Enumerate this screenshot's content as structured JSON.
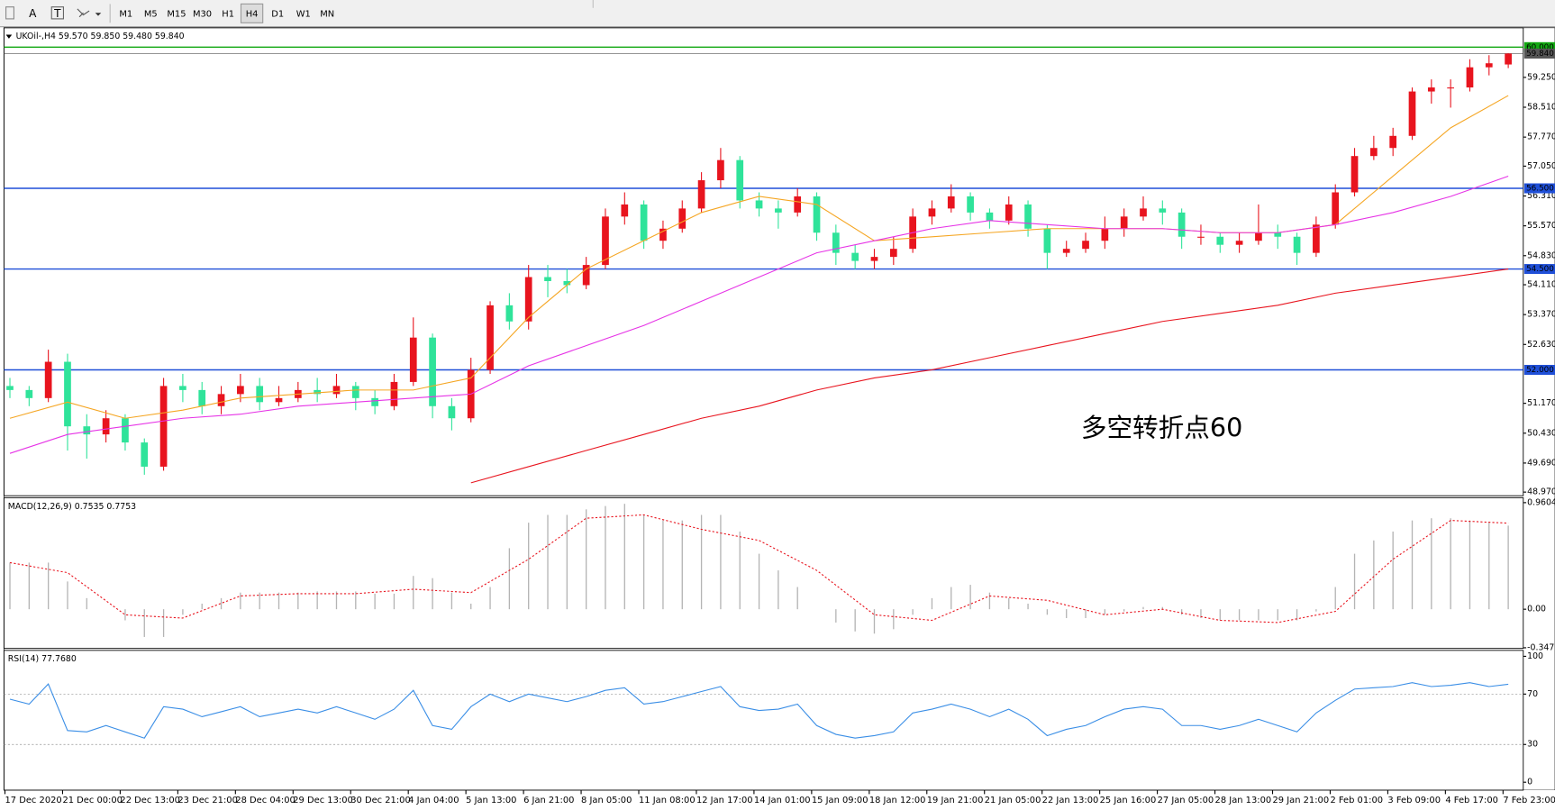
{
  "toolbar": {
    "tools": [
      "A",
      "T"
    ],
    "periods": [
      "M1",
      "M5",
      "M15",
      "M30",
      "H1",
      "H4",
      "D1",
      "W1",
      "MN"
    ]
  },
  "x_labels": [
    "17 Dec 2020",
    "21 Dec 00:00",
    "22 Dec 13:00",
    "23 Dec 21:00",
    "28 Dec 04:00",
    "29 Dec 13:00",
    "30 Dec 21:00",
    "4 Jan 04:00",
    "5 Jan 13:00",
    "6 Jan 21:00",
    "8 Jan 05:00",
    "11 Jan 08:00",
    "12 Jan 17:00",
    "14 Jan 01:00",
    "15 Jan 09:00",
    "18 Jan 12:00",
    "19 Jan 21:00",
    "21 Jan 05:00",
    "22 Jan 13:00",
    "25 Jan 16:00",
    "27 Jan 05:00",
    "28 Jan 13:00",
    "29 Jan 21:00",
    "2 Feb 01:00",
    "3 Feb 09:00",
    "4 Feb 17:00",
    "7 Feb 23:00"
  ],
  "chart_data": [
    {
      "type": "candlestick",
      "title": "UKOil-,H4 59.570 59.850 59.480 59.840",
      "up_color": "#e8141e",
      "down_color": "#2fe39a",
      "candles": [
        [
          51.6,
          51.8,
          51.3,
          51.5
        ],
        [
          51.5,
          51.6,
          51.1,
          51.3
        ],
        [
          51.3,
          52.5,
          51.2,
          52.2
        ],
        [
          52.2,
          52.4,
          50.0,
          50.6
        ],
        [
          50.6,
          50.9,
          49.8,
          50.4
        ],
        [
          50.4,
          51.0,
          50.2,
          50.8
        ],
        [
          50.8,
          50.9,
          50.0,
          50.2
        ],
        [
          50.2,
          50.3,
          49.4,
          49.6
        ],
        [
          49.6,
          51.8,
          49.5,
          51.6
        ],
        [
          51.6,
          51.9,
          51.2,
          51.5
        ],
        [
          51.5,
          51.7,
          50.9,
          51.1
        ],
        [
          51.1,
          51.6,
          50.9,
          51.4
        ],
        [
          51.4,
          51.9,
          51.2,
          51.6
        ],
        [
          51.6,
          51.8,
          51.0,
          51.2
        ],
        [
          51.2,
          51.6,
          51.1,
          51.3
        ],
        [
          51.3,
          51.7,
          51.2,
          51.5
        ],
        [
          51.5,
          51.8,
          51.2,
          51.4
        ],
        [
          51.4,
          51.9,
          51.3,
          51.6
        ],
        [
          51.6,
          51.7,
          51.0,
          51.3
        ],
        [
          51.3,
          51.5,
          50.9,
          51.1
        ],
        [
          51.1,
          51.9,
          51.0,
          51.7
        ],
        [
          51.7,
          53.3,
          51.6,
          52.8
        ],
        [
          52.8,
          52.9,
          50.8,
          51.1
        ],
        [
          51.1,
          51.3,
          50.5,
          50.8
        ],
        [
          50.8,
          52.3,
          50.7,
          52.0
        ],
        [
          52.0,
          53.7,
          51.9,
          53.6
        ],
        [
          53.6,
          53.9,
          53.0,
          53.2
        ],
        [
          53.2,
          54.6,
          53.0,
          54.3
        ],
        [
          54.3,
          54.6,
          53.8,
          54.2
        ],
        [
          54.2,
          54.5,
          53.9,
          54.1
        ],
        [
          54.1,
          54.8,
          54.0,
          54.6
        ],
        [
          54.6,
          56.0,
          54.5,
          55.8
        ],
        [
          55.8,
          56.4,
          55.6,
          56.1
        ],
        [
          56.1,
          56.2,
          55.0,
          55.2
        ],
        [
          55.2,
          55.7,
          55.0,
          55.5
        ],
        [
          55.5,
          56.2,
          55.4,
          56.0
        ],
        [
          56.0,
          56.9,
          55.9,
          56.7
        ],
        [
          56.7,
          57.5,
          56.5,
          57.2
        ],
        [
          57.2,
          57.3,
          56.0,
          56.2
        ],
        [
          56.2,
          56.4,
          55.8,
          56.0
        ],
        [
          56.0,
          56.2,
          55.5,
          55.9
        ],
        [
          55.9,
          56.5,
          55.8,
          56.3
        ],
        [
          56.3,
          56.4,
          55.2,
          55.4
        ],
        [
          55.4,
          55.6,
          54.6,
          54.9
        ],
        [
          54.9,
          55.1,
          54.5,
          54.7
        ],
        [
          54.7,
          55.0,
          54.5,
          54.8
        ],
        [
          54.8,
          55.3,
          54.6,
          55.0
        ],
        [
          55.0,
          56.0,
          54.9,
          55.8
        ],
        [
          55.8,
          56.2,
          55.6,
          56.0
        ],
        [
          56.0,
          56.6,
          55.9,
          56.3
        ],
        [
          56.3,
          56.4,
          55.7,
          55.9
        ],
        [
          55.9,
          56.0,
          55.5,
          55.7
        ],
        [
          55.7,
          56.3,
          55.6,
          56.1
        ],
        [
          56.1,
          56.2,
          55.3,
          55.5
        ],
        [
          55.5,
          55.6,
          54.5,
          54.9
        ],
        [
          54.9,
          55.2,
          54.8,
          55.0
        ],
        [
          55.0,
          55.4,
          54.9,
          55.2
        ],
        [
          55.2,
          55.8,
          55.0,
          55.5
        ],
        [
          55.5,
          56.0,
          55.3,
          55.8
        ],
        [
          55.8,
          56.3,
          55.7,
          56.0
        ],
        [
          56.0,
          56.2,
          55.6,
          55.9
        ],
        [
          55.9,
          56.0,
          55.0,
          55.3
        ],
        [
          55.3,
          55.6,
          55.1,
          55.3
        ],
        [
          55.3,
          55.4,
          54.9,
          55.1
        ],
        [
          55.1,
          55.4,
          54.9,
          55.2
        ],
        [
          55.2,
          56.1,
          55.1,
          55.4
        ],
        [
          55.4,
          55.6,
          55.0,
          55.3
        ],
        [
          55.3,
          55.4,
          54.6,
          54.9
        ],
        [
          54.9,
          55.8,
          54.8,
          55.6
        ],
        [
          55.6,
          56.6,
          55.5,
          56.4
        ],
        [
          56.4,
          57.5,
          56.3,
          57.3
        ],
        [
          57.3,
          57.8,
          57.2,
          57.5
        ],
        [
          57.5,
          58.0,
          57.3,
          57.8
        ],
        [
          57.8,
          59.0,
          57.7,
          58.9
        ],
        [
          58.9,
          59.2,
          58.6,
          59.0
        ],
        [
          59.0,
          59.2,
          58.5,
          59.0
        ],
        [
          59.0,
          59.7,
          58.9,
          59.5
        ],
        [
          59.5,
          59.8,
          59.3,
          59.6
        ],
        [
          59.57,
          59.85,
          59.48,
          59.84
        ]
      ],
      "series": [
        {
          "color": "#f5a623",
          "values": [
            50.8,
            51.2,
            50.8,
            51.0,
            51.3,
            51.4,
            51.5,
            51.5,
            51.8,
            53.3,
            54.5,
            55.2,
            55.9,
            56.3,
            56.1,
            55.2,
            55.3,
            55.4,
            55.5,
            55.5,
            55.5,
            55.4,
            55.4,
            55.6,
            56.8,
            58.0,
            58.8
          ]
        },
        {
          "color": "#e633e6",
          "values": [
            49.93,
            50.4,
            50.6,
            50.8,
            50.9,
            51.1,
            51.2,
            51.3,
            51.4,
            52.1,
            52.6,
            53.1,
            53.7,
            54.3,
            54.9,
            55.2,
            55.5,
            55.7,
            55.6,
            55.5,
            55.5,
            55.4,
            55.4,
            55.6,
            55.9,
            56.3,
            56.8
          ]
        },
        {
          "color": "#e8141e",
          "values": [
            null,
            null,
            null,
            null,
            null,
            null,
            null,
            null,
            49.2,
            49.6,
            50.0,
            50.4,
            50.8,
            51.1,
            51.5,
            51.8,
            52.0,
            52.3,
            52.6,
            52.9,
            53.2,
            53.4,
            53.6,
            53.9,
            54.1,
            54.3,
            54.5
          ]
        }
      ],
      "levels": [
        {
          "value": 60,
          "label": "60.000",
          "color": "#11a811"
        },
        {
          "value": 59.84,
          "label": "59.840",
          "color": "#555555"
        },
        {
          "value": 56.5,
          "label": "56.500",
          "color": "#1f4fd8"
        },
        {
          "value": 54.5,
          "label": "54.500",
          "color": "#1f4fd8"
        },
        {
          "value": 52,
          "label": "52.000",
          "color": "#1f4fd8"
        }
      ],
      "annotation": "多空转折点60",
      "annotation_color": "#e8141e",
      "ylim": [
        48.88,
        60.48
      ],
      "yticks": [
        {
          "value": 59.25,
          "label": "59.250"
        },
        {
          "value": 58.51,
          "label": "58.510"
        },
        {
          "value": 57.77,
          "label": "57.770"
        },
        {
          "value": 57.05,
          "label": "57.050"
        },
        {
          "value": 56.31,
          "label": "56.310"
        },
        {
          "value": 55.57,
          "label": "55.570"
        },
        {
          "value": 54.83,
          "label": "54.830"
        },
        {
          "value": 54.11,
          "label": "54.110"
        },
        {
          "value": 53.37,
          "label": "53.370"
        },
        {
          "value": 52.63,
          "label": "52.630"
        },
        {
          "value": 51.17,
          "label": "51.170"
        },
        {
          "value": 50.43,
          "label": "50.430"
        },
        {
          "value": 49.69,
          "label": "49.690"
        },
        {
          "value": 48.97,
          "label": "48.970"
        }
      ]
    },
    {
      "type": "macd",
      "title": "MACD(12,26,9) 0.7535 0.7753",
      "hist_color": "#b4b4b4",
      "signal_color": "#e8141e",
      "histogram": [
        0.42,
        0.42,
        0.42,
        0.25,
        0.1,
        0.0,
        -0.1,
        -0.25,
        -0.25,
        -0.05,
        0.05,
        0.1,
        0.15,
        0.15,
        0.15,
        0.15,
        0.16,
        0.16,
        0.16,
        0.14,
        0.14,
        0.3,
        0.28,
        0.15,
        0.05,
        0.2,
        0.55,
        0.78,
        0.85,
        0.85,
        0.9,
        0.93,
        0.95,
        0.85,
        0.8,
        0.8,
        0.85,
        0.85,
        0.7,
        0.5,
        0.35,
        0.2,
        0.0,
        -0.12,
        -0.2,
        -0.22,
        -0.18,
        -0.05,
        0.1,
        0.2,
        0.22,
        0.15,
        0.1,
        0.05,
        -0.05,
        -0.08,
        -0.08,
        -0.05,
        -0.02,
        0.02,
        0.02,
        -0.05,
        -0.08,
        -0.1,
        -0.1,
        -0.1,
        -0.1,
        -0.1,
        -0.02,
        0.2,
        0.5,
        0.62,
        0.7,
        0.8,
        0.82,
        0.82,
        0.8,
        0.78,
        0.7535
      ],
      "signal": [
        0.42,
        0.33,
        -0.05,
        -0.08,
        0.12,
        0.14,
        0.14,
        0.18,
        0.15,
        0.45,
        0.82,
        0.85,
        0.72,
        0.62,
        0.35,
        -0.05,
        -0.1,
        0.12,
        0.08,
        -0.05,
        0.0,
        -0.1,
        -0.12,
        -0.02,
        0.45,
        0.8,
        0.7753
      ],
      "ylim": [
        -0.353,
        1.005
      ],
      "yticks": [
        0.9604,
        {
          "value": 0,
          "label": "0.00"
        },
        -0.3473
      ]
    },
    {
      "type": "rsi",
      "title": "RSI(14) 77.7680",
      "color": "#3a8ee6",
      "values": [
        66,
        62,
        78,
        41,
        40,
        45,
        40,
        35,
        60,
        58,
        52,
        56,
        60,
        52,
        55,
        58,
        55,
        60,
        55,
        50,
        58,
        73,
        45,
        42,
        60,
        70,
        64,
        70,
        67,
        64,
        68,
        73,
        75,
        62,
        64,
        68,
        72,
        76,
        60,
        57,
        58,
        62,
        45,
        38,
        35,
        37,
        40,
        55,
        58,
        62,
        58,
        52,
        58,
        50,
        37,
        42,
        45,
        52,
        58,
        60,
        58,
        45,
        45,
        42,
        45,
        50,
        45,
        40,
        55,
        65,
        74,
        75,
        76,
        79,
        76,
        77,
        79,
        76,
        77.768
      ],
      "levels": [
        70,
        30
      ],
      "ylim": [
        -6.3,
        104.7
      ],
      "yticks": [
        100,
        70,
        30,
        0
      ]
    }
  ]
}
